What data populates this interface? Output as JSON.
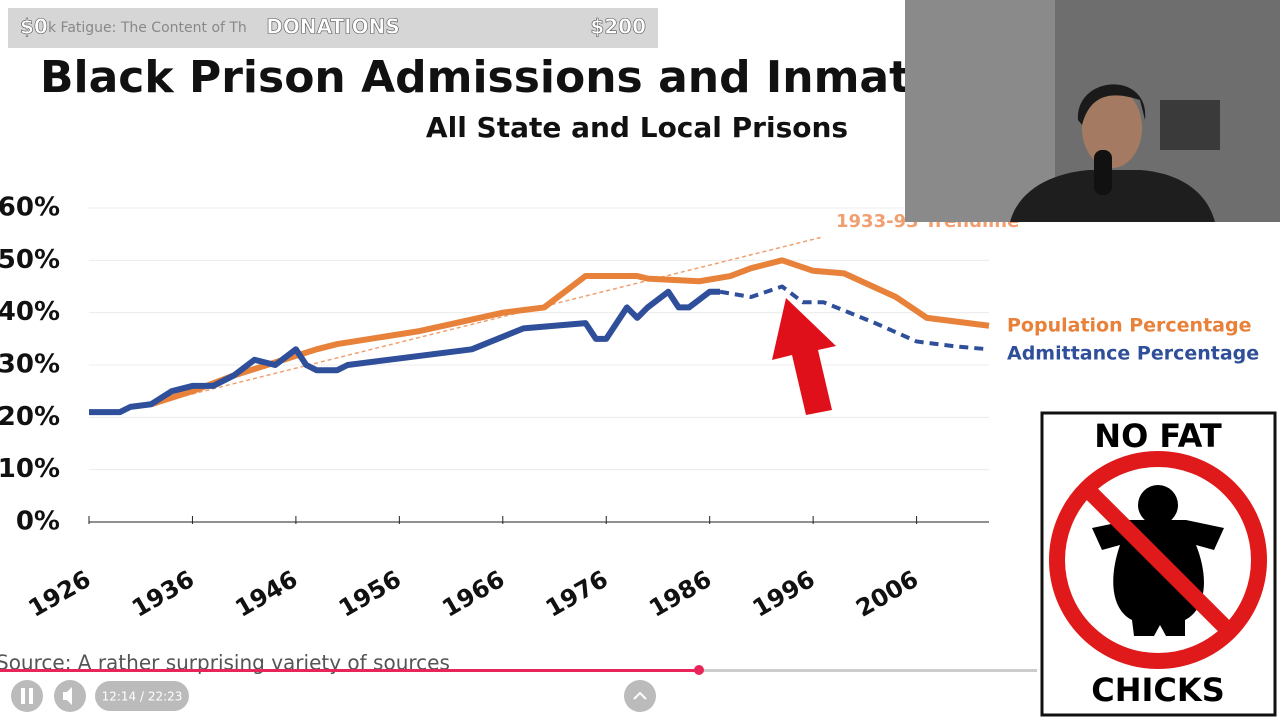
{
  "overlay": {
    "left_amount": "$0",
    "video_title": "k Fatigue: The Content of Th",
    "label": "DONATIONS",
    "right_amount": "$200"
  },
  "chart_data": {
    "type": "line",
    "title": "Black Prison Admissions and Inmates",
    "subtitle": "All State and Local Prisons",
    "source": "Source: A rather surprising variety of sources",
    "xlim": [
      1926,
      2013
    ],
    "ylim": [
      0,
      60
    ],
    "xticks": [
      1926,
      1936,
      1946,
      1956,
      1966,
      1976,
      1986,
      1996,
      2006
    ],
    "yticks": [
      {
        "value": 0,
        "label": "0%"
      },
      {
        "value": 10,
        "label": "10%"
      },
      {
        "value": 20,
        "label": "20%"
      },
      {
        "value": 30,
        "label": "30%"
      },
      {
        "value": 40,
        "label": "40%"
      },
      {
        "value": 50,
        "label": "50%"
      },
      {
        "value": 60,
        "label": "60%"
      }
    ],
    "grid": true,
    "trendline": {
      "label": "1933-93 Trendline",
      "color": "#f0a070",
      "x": [
        1932,
        1997
      ],
      "values": [
        22.5,
        54.5
      ]
    },
    "series": [
      {
        "name": "Population Percentage",
        "color": "#e8813a",
        "x": [
          1932,
          1936,
          1940,
          1944,
          1948,
          1950,
          1958,
          1966,
          1970,
          1974,
          1979,
          1980,
          1985,
          1988,
          1990,
          1993,
          1996,
          1999,
          2004,
          2007,
          2013
        ],
        "values": [
          22.5,
          25,
          28,
          30.5,
          33,
          34,
          36.5,
          40,
          41,
          47,
          47,
          46.5,
          46,
          47,
          48.5,
          50,
          48,
          47.5,
          43,
          39,
          37.5
        ]
      },
      {
        "name": "Admittance Percentage",
        "color": "#2f4f9a",
        "dashed_after": 1987,
        "x": [
          1926,
          1929,
          1930,
          1932,
          1934,
          1936,
          1938,
          1940,
          1942,
          1944,
          1946,
          1947,
          1948,
          1950,
          1951,
          1963,
          1968,
          1974,
          1975,
          1976,
          1978,
          1979,
          1980,
          1982,
          1983,
          1984,
          1986,
          1987,
          1990,
          1993,
          1995,
          1997,
          2002,
          2006,
          2010,
          2013
        ],
        "values": [
          21,
          21,
          22,
          22.5,
          25,
          26,
          26,
          28,
          31,
          30,
          33,
          30,
          29,
          29,
          30,
          33,
          37,
          38,
          35,
          35,
          41,
          39,
          41,
          44,
          41,
          41,
          44,
          44,
          43,
          45,
          42,
          42,
          38,
          34.5,
          33.5,
          33
        ]
      }
    ]
  },
  "sign": {
    "top": "NO FAT",
    "bottom": "CHICKS"
  },
  "player": {
    "time": "12:14 / 22:23"
  }
}
